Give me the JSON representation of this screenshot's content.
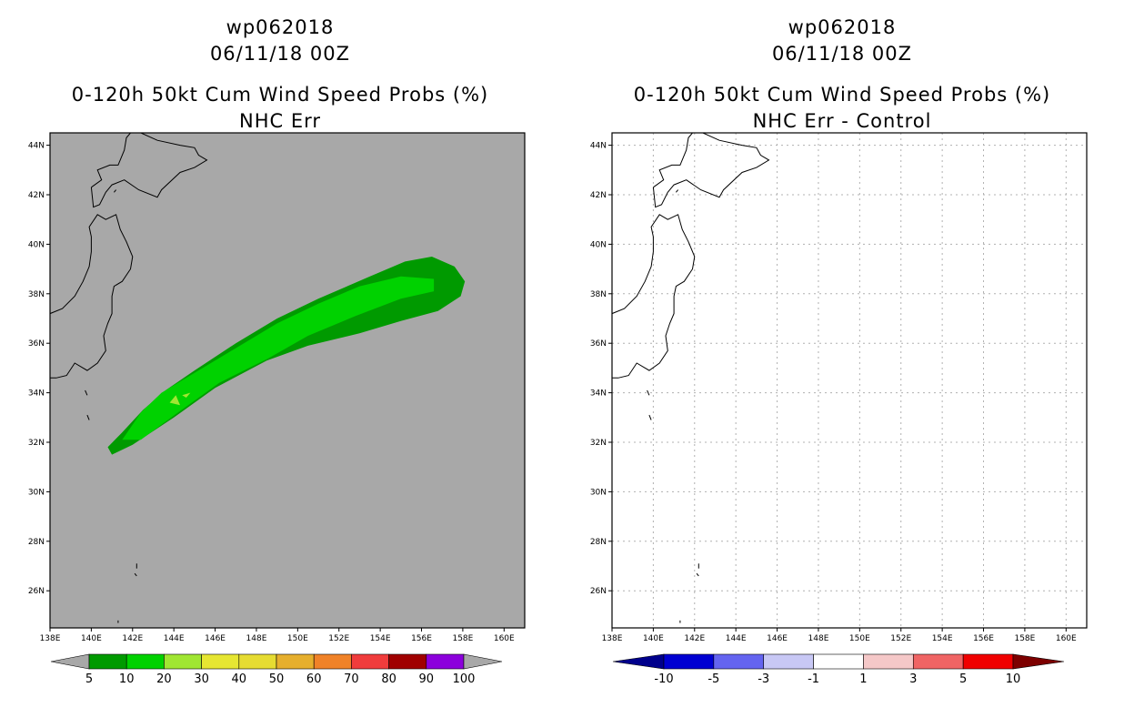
{
  "chart_data": [
    {
      "type": "heatmap",
      "title_lines": [
        "wp062018",
        "06/11/18 00Z",
        "0-120h 50kt Cum Wind Speed Probs (%)",
        "NHC Err"
      ],
      "x_ticks": [
        "138E",
        "140E",
        "142E",
        "144E",
        "146E",
        "148E",
        "150E",
        "152E",
        "154E",
        "156E",
        "158E",
        "160E"
      ],
      "y_ticks": [
        "26N",
        "28N",
        "30N",
        "32N",
        "34N",
        "36N",
        "38N",
        "40N",
        "42N",
        "44N"
      ],
      "xlim": [
        138,
        161
      ],
      "ylim": [
        24.5,
        44.5
      ],
      "background": "#a8a8a8",
      "colorbar": {
        "labels": [
          "5",
          "10",
          "20",
          "30",
          "40",
          "50",
          "60",
          "70",
          "80",
          "90",
          "100"
        ],
        "colors": [
          "#009a00",
          "#00d200",
          "#a0e632",
          "#e6e632",
          "#e6dc32",
          "#e6af2d",
          "#f08228",
          "#f03c3c",
          "#a00000",
          "#8c00dc"
        ],
        "end_color": "#a8a8a8"
      },
      "probability_bands": [
        {
          "range": "5-10",
          "color": "#009a00",
          "path": [
            [
              141.0,
              31.5
            ],
            [
              140.8,
              31.8
            ],
            [
              141.5,
              32.4
            ],
            [
              142.5,
              33.3
            ],
            [
              143.6,
              34.1
            ],
            [
              145.0,
              34.9
            ],
            [
              147.0,
              36.0
            ],
            [
              149.0,
              37.0
            ],
            [
              151.0,
              37.8
            ],
            [
              153.5,
              38.7
            ],
            [
              155.2,
              39.3
            ],
            [
              156.5,
              39.5
            ],
            [
              157.6,
              39.1
            ],
            [
              158.1,
              38.5
            ],
            [
              157.9,
              37.9
            ],
            [
              156.8,
              37.3
            ],
            [
              155.0,
              36.9
            ],
            [
              153.0,
              36.4
            ],
            [
              150.5,
              35.9
            ],
            [
              148.5,
              35.3
            ],
            [
              146.0,
              34.2
            ],
            [
              144.0,
              33.0
            ],
            [
              142.0,
              31.9
            ]
          ]
        },
        {
          "range": "10-20",
          "color": "#00d200",
          "path": [
            [
              141.5,
              32.1
            ],
            [
              142.4,
              33.2
            ],
            [
              143.4,
              34.0
            ],
            [
              145.0,
              34.8
            ],
            [
              147.0,
              35.8
            ],
            [
              149.0,
              36.8
            ],
            [
              151.0,
              37.6
            ],
            [
              153.0,
              38.3
            ],
            [
              155.0,
              38.7
            ],
            [
              156.6,
              38.6
            ],
            [
              156.6,
              38.1
            ],
            [
              155.0,
              37.8
            ],
            [
              152.8,
              37.1
            ],
            [
              150.5,
              36.3
            ],
            [
              148.6,
              35.4
            ],
            [
              146.2,
              34.4
            ],
            [
              144.2,
              33.2
            ],
            [
              142.4,
              32.1
            ]
          ]
        },
        {
          "range": "20-30",
          "color": "#a0e632",
          "path": [
            [
              143.8,
              33.6
            ],
            [
              144.1,
              33.9
            ],
            [
              144.3,
              33.5
            ]
          ]
        },
        {
          "range": "20-30",
          "color": "#a0e632",
          "path": [
            [
              144.4,
              33.9
            ],
            [
              144.8,
              34.0
            ],
            [
              144.6,
              33.8
            ]
          ]
        }
      ]
    },
    {
      "type": "heatmap",
      "title_lines": [
        "wp062018",
        "06/11/18 00Z",
        "0-120h 50kt Cum Wind Speed Probs (%)",
        "NHC Err - Control"
      ],
      "x_ticks": [
        "138E",
        "140E",
        "142E",
        "144E",
        "146E",
        "148E",
        "150E",
        "152E",
        "154E",
        "156E",
        "158E",
        "160E"
      ],
      "y_ticks": [
        "26N",
        "28N",
        "30N",
        "32N",
        "34N",
        "36N",
        "38N",
        "40N",
        "42N",
        "44N"
      ],
      "xlim": [
        138,
        161
      ],
      "ylim": [
        24.5,
        44.5
      ],
      "background": "#ffffff",
      "grid": true,
      "colorbar": {
        "labels": [
          "-10",
          "-5",
          "-3",
          "-1",
          "1",
          "3",
          "5",
          "10"
        ],
        "colors": [
          "#0000d2",
          "#6464f0",
          "#c8c8f5",
          "#ffffff",
          "#f5c8c8",
          "#f06464",
          "#f00000"
        ],
        "end_left": "#00008c",
        "end_right": "#7d0000"
      },
      "probability_bands": []
    }
  ]
}
